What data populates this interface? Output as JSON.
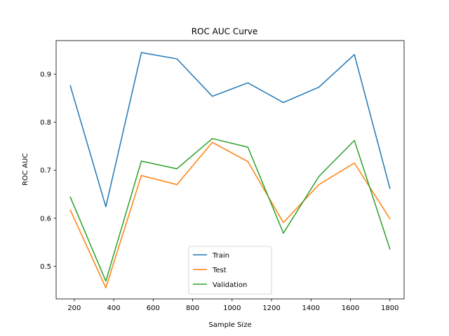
{
  "chart_data": {
    "type": "line",
    "title": "ROC AUC Curve",
    "xlabel": "Sample Size",
    "ylabel": "ROC AUC",
    "x": [
      180,
      360,
      540,
      720,
      900,
      1080,
      1260,
      1440,
      1620,
      1800
    ],
    "xlim": [
      108,
      1872
    ],
    "ylim": [
      0.432,
      0.97
    ],
    "xticks": [
      200,
      400,
      600,
      800,
      1000,
      1200,
      1400,
      1600,
      1800
    ],
    "xtick_labels": [
      "200",
      "400",
      "600",
      "800",
      "1000",
      "1200",
      "1400",
      "1600",
      "1800"
    ],
    "yticks": [
      0.5,
      0.6,
      0.7,
      0.8,
      0.9
    ],
    "ytick_labels": [
      "0.5",
      "0.6",
      "0.7",
      "0.8",
      "0.9"
    ],
    "grid": false,
    "legend_position": "lower center",
    "series": [
      {
        "name": "Train",
        "color": "#1f77b4",
        "values": [
          0.876,
          0.624,
          0.945,
          0.932,
          0.854,
          0.882,
          0.841,
          0.873,
          0.941,
          0.662
        ]
      },
      {
        "name": "Test",
        "color": "#ff7f0e",
        "values": [
          0.617,
          0.455,
          0.689,
          0.67,
          0.758,
          0.718,
          0.591,
          0.67,
          0.715,
          0.599
        ]
      },
      {
        "name": "Validation",
        "color": "#2ca02c",
        "values": [
          0.644,
          0.469,
          0.719,
          0.703,
          0.766,
          0.748,
          0.569,
          0.687,
          0.762,
          0.536
        ]
      }
    ]
  }
}
